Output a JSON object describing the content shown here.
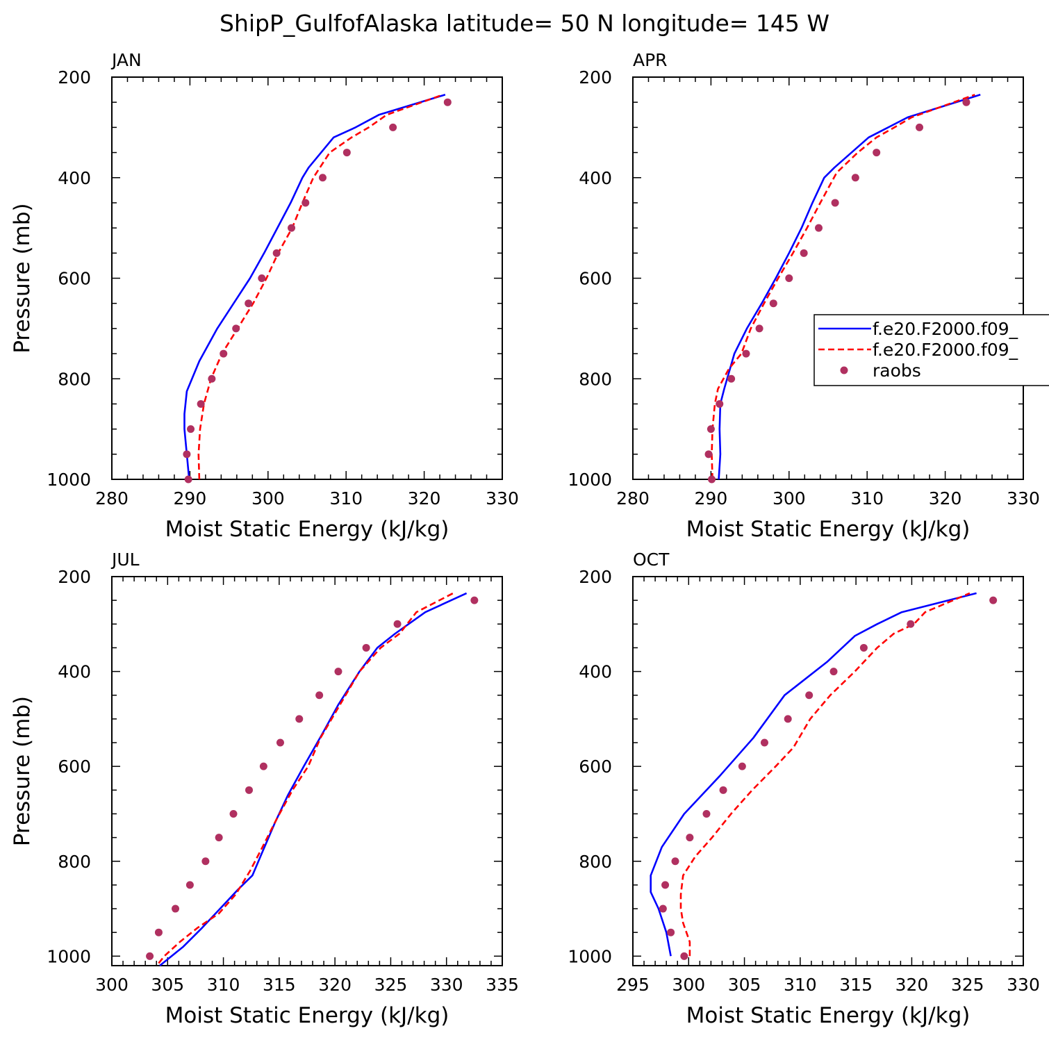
{
  "figure": {
    "title": "ShipP_GulfofAlaska  latitude= 50 N longitude= 145 W"
  },
  "legend": {
    "entries": [
      {
        "label": "f.e20.F2000.f09_",
        "style": "solid",
        "color": "#0000ff"
      },
      {
        "label": "f.e20.F2000.f09_",
        "style": "dashed",
        "color": "#ff0000"
      },
      {
        "label": "raobs",
        "style": "marker",
        "color": "#b03060"
      }
    ]
  },
  "colors": {
    "series_1": "#0000ff",
    "series_2": "#ff0000",
    "raobs": "#b03060"
  },
  "chart_data": [
    {
      "type": "line",
      "title": "JAN",
      "xlabel": "Moist Static Energy (kJ/kg)",
      "ylabel": "Pressure (mb)",
      "xlim": [
        280,
        330
      ],
      "ylim": [
        1000,
        200
      ],
      "ylim_bottom": 1000,
      "xticks": [
        280,
        290,
        300,
        310,
        320,
        330
      ],
      "yticks": [
        200,
        400,
        600,
        800,
        1000
      ],
      "series": [
        {
          "style": "solid",
          "color": "#0000ff",
          "points": [
            [
              289.9,
              1000
            ],
            [
              289.6,
              950
            ],
            [
              289.3,
              900
            ],
            [
              289.3,
              870
            ],
            [
              289.6,
              825
            ],
            [
              291.2,
              765
            ],
            [
              293.5,
              700
            ],
            [
              295.6,
              650
            ],
            [
              297.7,
              600
            ],
            [
              299.5,
              550
            ],
            [
              301.2,
              500
            ],
            [
              302.9,
              450
            ],
            [
              304.4,
              400
            ],
            [
              305.2,
              380
            ],
            [
              308.4,
              320
            ],
            [
              311.2,
              300
            ],
            [
              314.2,
              275
            ],
            [
              322.7,
              235
            ]
          ]
        },
        {
          "style": "dashed",
          "color": "#ff0000",
          "points": [
            [
              291.2,
              1000
            ],
            [
              291.1,
              950
            ],
            [
              291.3,
              900
            ],
            [
              291.8,
              850
            ],
            [
              292.7,
              800
            ],
            [
              294.1,
              750
            ],
            [
              296.1,
              700
            ],
            [
              298.1,
              650
            ],
            [
              299.8,
              600
            ],
            [
              301.3,
              550
            ],
            [
              303.1,
              500
            ],
            [
              304.4,
              450
            ],
            [
              305.8,
              400
            ],
            [
              307.9,
              350
            ],
            [
              310.7,
              320
            ],
            [
              312.9,
              300
            ],
            [
              315.2,
              275
            ],
            [
              322.4,
              235
            ]
          ]
        },
        {
          "style": "marker",
          "color": "#b03060",
          "points": [
            [
              289.8,
              1000
            ],
            [
              289.6,
              950
            ],
            [
              290.1,
              900
            ],
            [
              291.4,
              850
            ],
            [
              292.8,
              800
            ],
            [
              294.3,
              750
            ],
            [
              295.9,
              700
            ],
            [
              297.5,
              650
            ],
            [
              299.2,
              600
            ],
            [
              301.1,
              550
            ],
            [
              303.0,
              500
            ],
            [
              304.8,
              450
            ],
            [
              307.0,
              400
            ],
            [
              310.1,
              350
            ],
            [
              316.0,
              300
            ],
            [
              323.0,
              250
            ]
          ]
        }
      ]
    },
    {
      "type": "line",
      "title": "APR",
      "xlabel": "Moist Static Energy (kJ/kg)",
      "ylabel": "",
      "xlim": [
        280,
        330
      ],
      "ylim": [
        1000,
        200
      ],
      "ylim_bottom": 1000,
      "xticks": [
        280,
        290,
        300,
        310,
        320,
        330
      ],
      "yticks": [
        200,
        400,
        600,
        800,
        1000
      ],
      "series": [
        {
          "style": "solid",
          "color": "#0000ff",
          "points": [
            [
              291.0,
              1000
            ],
            [
              291.2,
              950
            ],
            [
              291.1,
              900
            ],
            [
              291.2,
              850
            ],
            [
              291.7,
              820
            ],
            [
              293.0,
              750
            ],
            [
              294.6,
              700
            ],
            [
              296.5,
              650
            ],
            [
              298.3,
              600
            ],
            [
              300.0,
              550
            ],
            [
              301.6,
              500
            ],
            [
              303.0,
              450
            ],
            [
              304.5,
              400
            ],
            [
              305.8,
              380
            ],
            [
              310.2,
              320
            ],
            [
              312.7,
              300
            ],
            [
              315.2,
              280
            ],
            [
              324.5,
              235
            ]
          ]
        },
        {
          "style": "dashed",
          "color": "#ff0000",
          "points": [
            [
              290.2,
              1000
            ],
            [
              290.1,
              950
            ],
            [
              290.2,
              900
            ],
            [
              290.5,
              850
            ],
            [
              290.9,
              820
            ],
            [
              292.3,
              780
            ],
            [
              293.9,
              750
            ],
            [
              295.1,
              700
            ],
            [
              296.8,
              650
            ],
            [
              298.6,
              600
            ],
            [
              300.5,
              550
            ],
            [
              302.3,
              500
            ],
            [
              304.0,
              450
            ],
            [
              306.1,
              390
            ],
            [
              308.8,
              350
            ],
            [
              311.2,
              320
            ],
            [
              313.5,
              300
            ],
            [
              315.7,
              280
            ],
            [
              323.8,
              235
            ]
          ]
        },
        {
          "style": "marker",
          "color": "#b03060",
          "points": [
            [
              290.1,
              1000
            ],
            [
              289.7,
              950
            ],
            [
              290.0,
              900
            ],
            [
              291.1,
              850
            ],
            [
              292.6,
              800
            ],
            [
              294.5,
              750
            ],
            [
              296.2,
              700
            ],
            [
              298.0,
              650
            ],
            [
              300.0,
              600
            ],
            [
              301.9,
              550
            ],
            [
              303.8,
              500
            ],
            [
              305.9,
              450
            ],
            [
              308.5,
              400
            ],
            [
              311.2,
              350
            ],
            [
              316.7,
              300
            ],
            [
              322.7,
              250
            ]
          ]
        }
      ]
    },
    {
      "type": "line",
      "title": "JUL",
      "xlabel": "Moist Static Energy (kJ/kg)",
      "ylabel": "Pressure (mb)",
      "xlim": [
        300,
        335
      ],
      "ylim": [
        1020,
        200
      ],
      "ylim_bottom": 1020,
      "xticks": [
        300,
        305,
        310,
        315,
        320,
        325,
        330,
        335
      ],
      "yticks": [
        200,
        400,
        600,
        800,
        1000
      ],
      "series": [
        {
          "style": "solid",
          "color": "#0000ff",
          "points": [
            [
              304.3,
              1020
            ],
            [
              306.4,
              980
            ],
            [
              308.1,
              940
            ],
            [
              309.7,
              900
            ],
            [
              311.3,
              860
            ],
            [
              312.6,
              830
            ],
            [
              313.5,
              780
            ],
            [
              314.6,
              720
            ],
            [
              315.8,
              660
            ],
            [
              317.2,
              600
            ],
            [
              318.9,
              530
            ],
            [
              320.3,
              470
            ],
            [
              322.2,
              400
            ],
            [
              323.8,
              350
            ],
            [
              325.4,
              320
            ],
            [
              328.1,
              275
            ],
            [
              331.8,
              235
            ]
          ]
        },
        {
          "style": "dashed",
          "color": "#ff0000",
          "points": [
            [
              304.2,
              1015
            ],
            [
              304.7,
              1000
            ],
            [
              306.1,
              970
            ],
            [
              307.7,
              940
            ],
            [
              309.6,
              910
            ],
            [
              311.1,
              870
            ],
            [
              312.4,
              820
            ],
            [
              313.5,
              770
            ],
            [
              314.8,
              710
            ],
            [
              316.2,
              650
            ],
            [
              317.6,
              600
            ],
            [
              318.7,
              540
            ],
            [
              320.2,
              480
            ],
            [
              322.2,
              400
            ],
            [
              324.1,
              350
            ],
            [
              325.8,
              320
            ],
            [
              326.8,
              290
            ],
            [
              327.3,
              275
            ],
            [
              330.6,
              235
            ]
          ]
        },
        {
          "style": "marker",
          "color": "#b03060",
          "points": [
            [
              303.4,
              1000
            ],
            [
              304.2,
              950
            ],
            [
              305.7,
              900
            ],
            [
              307.0,
              850
            ],
            [
              308.4,
              800
            ],
            [
              309.6,
              750
            ],
            [
              310.9,
              700
            ],
            [
              312.3,
              650
            ],
            [
              313.6,
              600
            ],
            [
              315.1,
              550
            ],
            [
              316.8,
              500
            ],
            [
              318.6,
              450
            ],
            [
              320.3,
              400
            ],
            [
              322.8,
              350
            ],
            [
              325.6,
              300
            ],
            [
              332.5,
              250
            ]
          ]
        }
      ]
    },
    {
      "type": "line",
      "title": "OCT",
      "xlabel": "Moist Static Energy (kJ/kg)",
      "ylabel": "",
      "xlim": [
        295,
        330
      ],
      "ylim": [
        1020,
        200
      ],
      "ylim_bottom": 1020,
      "xticks": [
        295,
        300,
        305,
        310,
        315,
        320,
        325,
        330
      ],
      "yticks": [
        200,
        400,
        600,
        800,
        1000
      ],
      "series": [
        {
          "style": "solid",
          "color": "#0000ff",
          "points": [
            [
              298.4,
              1000
            ],
            [
              298.0,
              950
            ],
            [
              297.3,
              900
            ],
            [
              296.6,
              865
            ],
            [
              296.6,
              830
            ],
            [
              297.6,
              770
            ],
            [
              299.6,
              700
            ],
            [
              302.8,
              620
            ],
            [
              305.8,
              540
            ],
            [
              308.6,
              450
            ],
            [
              312.4,
              380
            ],
            [
              314.9,
              325
            ],
            [
              316.9,
              300
            ],
            [
              319.1,
              275
            ],
            [
              325.8,
              235
            ]
          ]
        },
        {
          "style": "dashed",
          "color": "#ff0000",
          "points": [
            [
              300.1,
              1000
            ],
            [
              300.1,
              970
            ],
            [
              299.8,
              950
            ],
            [
              299.5,
              930
            ],
            [
              299.3,
              900
            ],
            [
              299.3,
              870
            ],
            [
              299.5,
              830
            ],
            [
              300.6,
              790
            ],
            [
              302.1,
              750
            ],
            [
              303.8,
              700
            ],
            [
              305.7,
              650
            ],
            [
              307.8,
              600
            ],
            [
              309.4,
              560
            ],
            [
              310.9,
              500
            ],
            [
              312.7,
              450
            ],
            [
              314.9,
              400
            ],
            [
              316.9,
              350
            ],
            [
              318.4,
              320
            ],
            [
              320.2,
              300
            ],
            [
              321.2,
              275
            ],
            [
              325.2,
              235
            ]
          ]
        },
        {
          "style": "marker",
          "color": "#b03060",
          "points": [
            [
              299.6,
              1000
            ],
            [
              298.4,
              950
            ],
            [
              297.7,
              900
            ],
            [
              297.9,
              850
            ],
            [
              298.8,
              800
            ],
            [
              300.1,
              750
            ],
            [
              301.6,
              700
            ],
            [
              303.1,
              650
            ],
            [
              304.8,
              600
            ],
            [
              306.8,
              550
            ],
            [
              308.9,
              500
            ],
            [
              310.8,
              450
            ],
            [
              313.0,
              400
            ],
            [
              315.7,
              350
            ],
            [
              319.9,
              300
            ],
            [
              327.3,
              250
            ]
          ]
        }
      ]
    }
  ]
}
